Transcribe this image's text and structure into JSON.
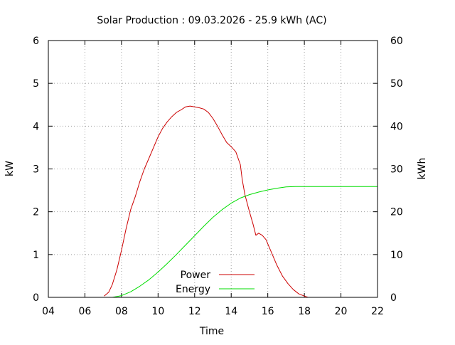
{
  "chart_data": {
    "type": "line",
    "title": "Solar Production : 09.03.2026 - 25.9 kWh (AC)",
    "xlabel": "Time",
    "ylabel_left": "kW",
    "ylabel_right": "kWh",
    "xlim": [
      4,
      22
    ],
    "ylim_left": [
      0,
      6
    ],
    "ylim_right": [
      0,
      60
    ],
    "x_ticks": [
      4,
      6,
      8,
      10,
      12,
      14,
      16,
      18,
      20,
      22
    ],
    "x_tick_labels": [
      "04",
      "06",
      "08",
      "10",
      "12",
      "14",
      "16",
      "18",
      "20",
      "22"
    ],
    "y_ticks_left": [
      0,
      1,
      2,
      3,
      4,
      5,
      6
    ],
    "y_tick_labels_left": [
      "0",
      "1",
      "2",
      "3",
      "4",
      "5",
      "6"
    ],
    "y_ticks_right": [
      0,
      10,
      20,
      30,
      40,
      50,
      60
    ],
    "y_tick_labels_right": [
      "0",
      "10",
      "20",
      "30",
      "40",
      "50",
      "60"
    ],
    "grid": true,
    "legend_position": "bottom-center",
    "series": [
      {
        "name": "Power",
        "axis": "left",
        "color": "#cc0000",
        "x": [
          7.05,
          7.3,
          7.5,
          7.75,
          8.0,
          8.25,
          8.5,
          8.75,
          9.0,
          9.25,
          9.5,
          9.75,
          10.0,
          10.25,
          10.5,
          10.75,
          11.0,
          11.25,
          11.5,
          11.75,
          12.0,
          12.25,
          12.5,
          12.75,
          13.0,
          13.25,
          13.5,
          13.75,
          14.0,
          14.25,
          14.5,
          14.6,
          14.75,
          15.0,
          15.2,
          15.35,
          15.5,
          15.7,
          15.9,
          16.2,
          16.5,
          16.8,
          17.1,
          17.4,
          17.7,
          18.0,
          18.2
        ],
        "y": [
          0.03,
          0.12,
          0.3,
          0.65,
          1.1,
          1.6,
          2.05,
          2.35,
          2.7,
          3.0,
          3.25,
          3.5,
          3.75,
          3.95,
          4.1,
          4.22,
          4.32,
          4.38,
          4.45,
          4.47,
          4.45,
          4.43,
          4.4,
          4.32,
          4.18,
          4.0,
          3.8,
          3.62,
          3.52,
          3.4,
          3.1,
          2.75,
          2.4,
          2.0,
          1.7,
          1.45,
          1.5,
          1.45,
          1.35,
          1.05,
          0.75,
          0.5,
          0.32,
          0.18,
          0.08,
          0.03,
          0.0
        ]
      },
      {
        "name": "Energy",
        "axis": "right",
        "color": "#00dd00",
        "x": [
          7.5,
          8.0,
          8.5,
          9.0,
          9.5,
          10.0,
          10.5,
          11.0,
          11.5,
          12.0,
          12.5,
          13.0,
          13.5,
          14.0,
          14.5,
          15.0,
          15.5,
          16.0,
          16.5,
          17.0,
          17.5,
          18.0,
          19.0,
          20.0,
          21.0,
          22.0
        ],
        "y": [
          0.0,
          0.4,
          1.3,
          2.6,
          4.1,
          5.9,
          7.9,
          10.0,
          12.2,
          14.4,
          16.6,
          18.7,
          20.5,
          22.0,
          23.2,
          24.0,
          24.6,
          25.1,
          25.5,
          25.8,
          25.9,
          25.9,
          25.9,
          25.9,
          25.9,
          25.9
        ]
      }
    ]
  }
}
